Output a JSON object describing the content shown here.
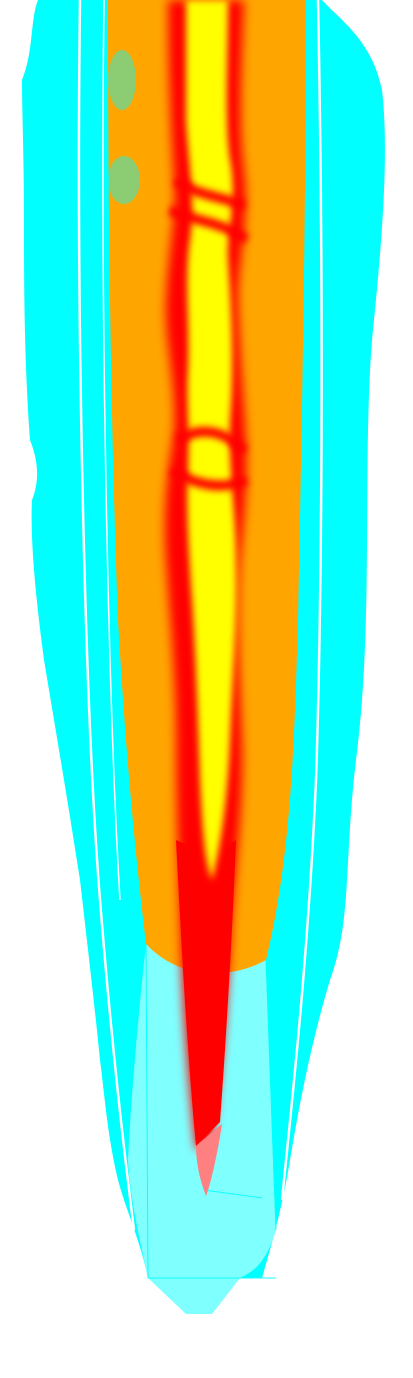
{
  "image": {
    "subject": "plume",
    "palette": {
      "background": "#ffffff",
      "outer_zone": "#00ffff",
      "outer_zone_translucent": "#80ffff",
      "mid_zone": "#ffa500",
      "hot_zone": "#ff0000",
      "core": "#ffff00",
      "tip": "#ff8080",
      "boundary_line": "#ffffff"
    }
  }
}
